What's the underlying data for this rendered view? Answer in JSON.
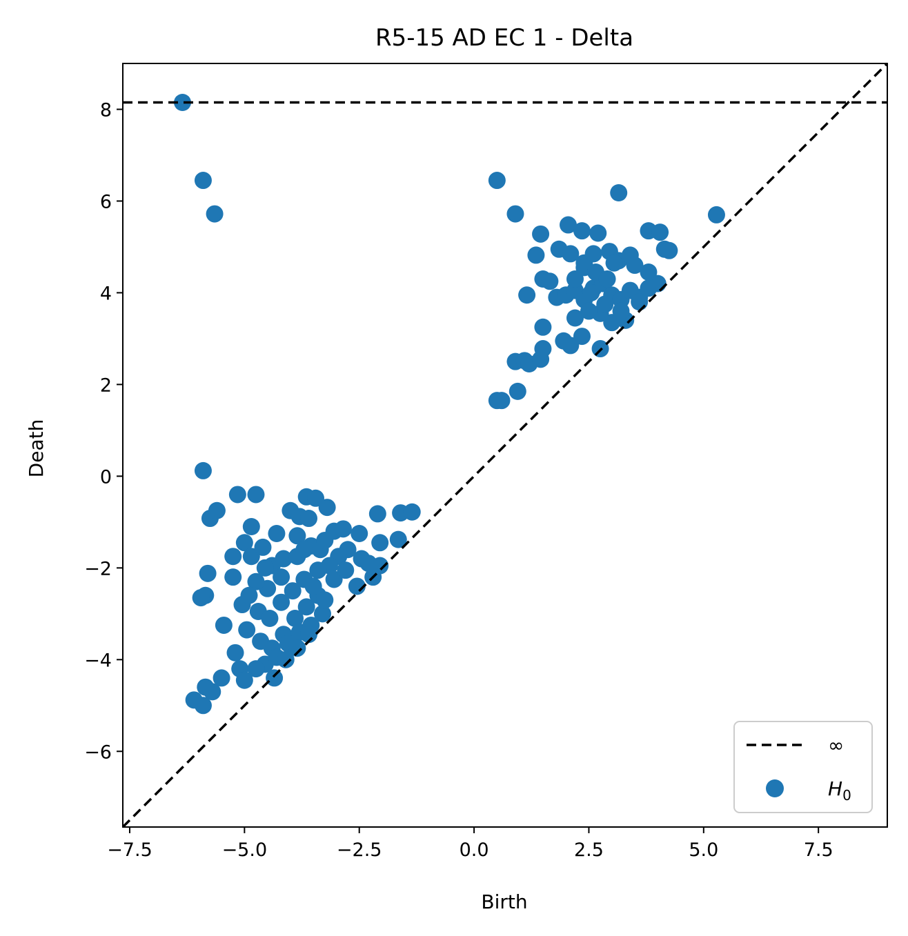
{
  "chart_data": {
    "type": "scatter",
    "title": "R5-15 AD EC 1 - Delta",
    "xlabel": "Birth",
    "ylabel": "Death",
    "xlim": [
      -7.65,
      9.0
    ],
    "ylim": [
      -7.65,
      9.0
    ],
    "xticks": [
      -7.5,
      -5.0,
      -2.5,
      0.0,
      2.5,
      5.0,
      7.5
    ],
    "xtick_labels": [
      "−7.5",
      "−5.0",
      "−2.5",
      "0.0",
      "2.5",
      "5.0",
      "7.5"
    ],
    "yticks": [
      -6,
      -4,
      -2,
      0,
      2,
      4,
      6,
      8
    ],
    "ytick_labels": [
      "−6",
      "−4",
      "−2",
      "0",
      "2",
      "4",
      "6",
      "8"
    ],
    "grid": false,
    "legend_position": "lower-right",
    "infinity_level": 8.15,
    "legend": [
      {
        "label": "∞",
        "kind": "dashed-line",
        "color": "#000000"
      },
      {
        "label": "H",
        "subscript": "0",
        "kind": "marker",
        "color": "#1f77b4"
      }
    ],
    "series": [
      {
        "name": "H0",
        "color": "#1f77b4",
        "points": [
          [
            -6.35,
            8.15
          ],
          [
            -5.9,
            6.45
          ],
          [
            -5.65,
            5.72
          ],
          [
            -5.9,
            0.12
          ],
          [
            -5.75,
            -0.92
          ],
          [
            -5.6,
            -0.75
          ],
          [
            -5.15,
            -0.4
          ],
          [
            -4.75,
            -0.4
          ],
          [
            -4.85,
            -1.1
          ],
          [
            -5.0,
            -1.45
          ],
          [
            -5.25,
            -1.75
          ],
          [
            -5.8,
            -2.12
          ],
          [
            -5.85,
            -2.6
          ],
          [
            -5.95,
            -2.65
          ],
          [
            -5.25,
            -2.2
          ],
          [
            -5.05,
            -2.8
          ],
          [
            -5.45,
            -3.25
          ],
          [
            -5.2,
            -3.85
          ],
          [
            -5.1,
            -4.2
          ],
          [
            -5.0,
            -4.45
          ],
          [
            -5.5,
            -4.4
          ],
          [
            -5.7,
            -4.7
          ],
          [
            -5.85,
            -4.6
          ],
          [
            -6.1,
            -4.88
          ],
          [
            -5.9,
            -5.0
          ],
          [
            -4.85,
            -1.75
          ],
          [
            -4.6,
            -1.55
          ],
          [
            -4.4,
            -1.95
          ],
          [
            -4.15,
            -1.8
          ],
          [
            -3.85,
            -1.75
          ],
          [
            -4.2,
            -2.2
          ],
          [
            -4.5,
            -2.45
          ],
          [
            -4.75,
            -2.3
          ],
          [
            -4.9,
            -2.6
          ],
          [
            -4.7,
            -2.95
          ],
          [
            -4.45,
            -3.1
          ],
          [
            -4.2,
            -2.75
          ],
          [
            -3.95,
            -2.5
          ],
          [
            -3.7,
            -2.25
          ],
          [
            -4.95,
            -3.35
          ],
          [
            -4.65,
            -3.6
          ],
          [
            -4.4,
            -3.75
          ],
          [
            -4.15,
            -3.45
          ],
          [
            -3.9,
            -3.1
          ],
          [
            -3.65,
            -2.85
          ],
          [
            -3.4,
            -2.6
          ],
          [
            -4.55,
            -4.1
          ],
          [
            -4.3,
            -3.95
          ],
          [
            -4.05,
            -3.65
          ],
          [
            -3.8,
            -3.4
          ],
          [
            -3.55,
            -3.25
          ],
          [
            -3.3,
            -3.0
          ],
          [
            -4.35,
            -4.4
          ],
          [
            -4.1,
            -4.0
          ],
          [
            -3.85,
            -3.75
          ],
          [
            -3.6,
            -3.45
          ],
          [
            -4.75,
            -4.2
          ],
          [
            -4.0,
            -0.75
          ],
          [
            -3.8,
            -0.88
          ],
          [
            -3.6,
            -0.92
          ],
          [
            -3.65,
            -0.45
          ],
          [
            -3.45,
            -0.48
          ],
          [
            -3.2,
            -0.68
          ],
          [
            -3.85,
            -1.3
          ],
          [
            -3.55,
            -1.52
          ],
          [
            -3.35,
            -1.6
          ],
          [
            -3.25,
            -1.4
          ],
          [
            -3.05,
            -1.2
          ],
          [
            -2.85,
            -1.15
          ],
          [
            -2.75,
            -1.6
          ],
          [
            -2.95,
            -1.75
          ],
          [
            -3.15,
            -1.95
          ],
          [
            -3.4,
            -2.05
          ],
          [
            -3.05,
            -2.25
          ],
          [
            -2.8,
            -2.05
          ],
          [
            -2.5,
            -1.25
          ],
          [
            -2.45,
            -1.8
          ],
          [
            -2.2,
            -2.2
          ],
          [
            -2.05,
            -1.95
          ],
          [
            -2.3,
            -1.9
          ],
          [
            -2.55,
            -2.4
          ],
          [
            -2.1,
            -0.82
          ],
          [
            -1.6,
            -0.8
          ],
          [
            -1.35,
            -0.78
          ],
          [
            -2.05,
            -1.45
          ],
          [
            -1.65,
            -1.38
          ],
          [
            -3.7,
            -1.6
          ],
          [
            -4.3,
            -1.25
          ],
          [
            -4.55,
            -2.0
          ],
          [
            -3.25,
            -2.7
          ],
          [
            -3.5,
            -2.4
          ],
          [
            0.5,
            6.45
          ],
          [
            0.9,
            5.72
          ],
          [
            0.5,
            1.65
          ],
          [
            0.6,
            1.65
          ],
          [
            0.95,
            1.85
          ],
          [
            0.9,
            2.5
          ],
          [
            1.1,
            2.52
          ],
          [
            1.2,
            2.45
          ],
          [
            1.45,
            2.55
          ],
          [
            1.5,
            2.78
          ],
          [
            1.5,
            3.25
          ],
          [
            1.15,
            3.95
          ],
          [
            1.5,
            4.3
          ],
          [
            1.65,
            4.25
          ],
          [
            1.35,
            4.82
          ],
          [
            1.45,
            5.28
          ],
          [
            2.05,
            5.48
          ],
          [
            2.35,
            5.35
          ],
          [
            2.7,
            5.3
          ],
          [
            1.85,
            4.95
          ],
          [
            2.1,
            4.85
          ],
          [
            2.4,
            4.65
          ],
          [
            2.6,
            4.85
          ],
          [
            2.95,
            4.9
          ],
          [
            3.15,
            4.7
          ],
          [
            3.4,
            4.82
          ],
          [
            3.15,
            6.18
          ],
          [
            3.8,
            5.35
          ],
          [
            4.05,
            5.32
          ],
          [
            4.15,
            4.95
          ],
          [
            4.25,
            4.92
          ],
          [
            5.28,
            5.7
          ],
          [
            1.8,
            3.9
          ],
          [
            2.0,
            3.95
          ],
          [
            2.2,
            4.05
          ],
          [
            2.4,
            3.85
          ],
          [
            2.6,
            4.1
          ],
          [
            2.8,
            4.2
          ],
          [
            3.0,
            3.95
          ],
          [
            3.2,
            3.85
          ],
          [
            3.4,
            4.05
          ],
          [
            3.6,
            3.9
          ],
          [
            3.8,
            4.1
          ],
          [
            4.0,
            4.2
          ],
          [
            3.8,
            4.45
          ],
          [
            3.6,
            3.8
          ],
          [
            3.3,
            3.4
          ],
          [
            3.0,
            3.35
          ],
          [
            2.75,
            3.55
          ],
          [
            2.5,
            3.6
          ],
          [
            2.2,
            3.45
          ],
          [
            2.35,
            3.05
          ],
          [
            2.1,
            2.85
          ],
          [
            1.95,
            2.95
          ],
          [
            2.75,
            2.78
          ],
          [
            2.2,
            4.3
          ],
          [
            2.4,
            4.55
          ],
          [
            2.65,
            4.45
          ],
          [
            2.9,
            4.3
          ],
          [
            3.05,
            4.65
          ],
          [
            3.5,
            4.6
          ],
          [
            2.55,
            4.0
          ],
          [
            2.85,
            3.75
          ],
          [
            3.2,
            3.6
          ]
        ]
      }
    ]
  }
}
